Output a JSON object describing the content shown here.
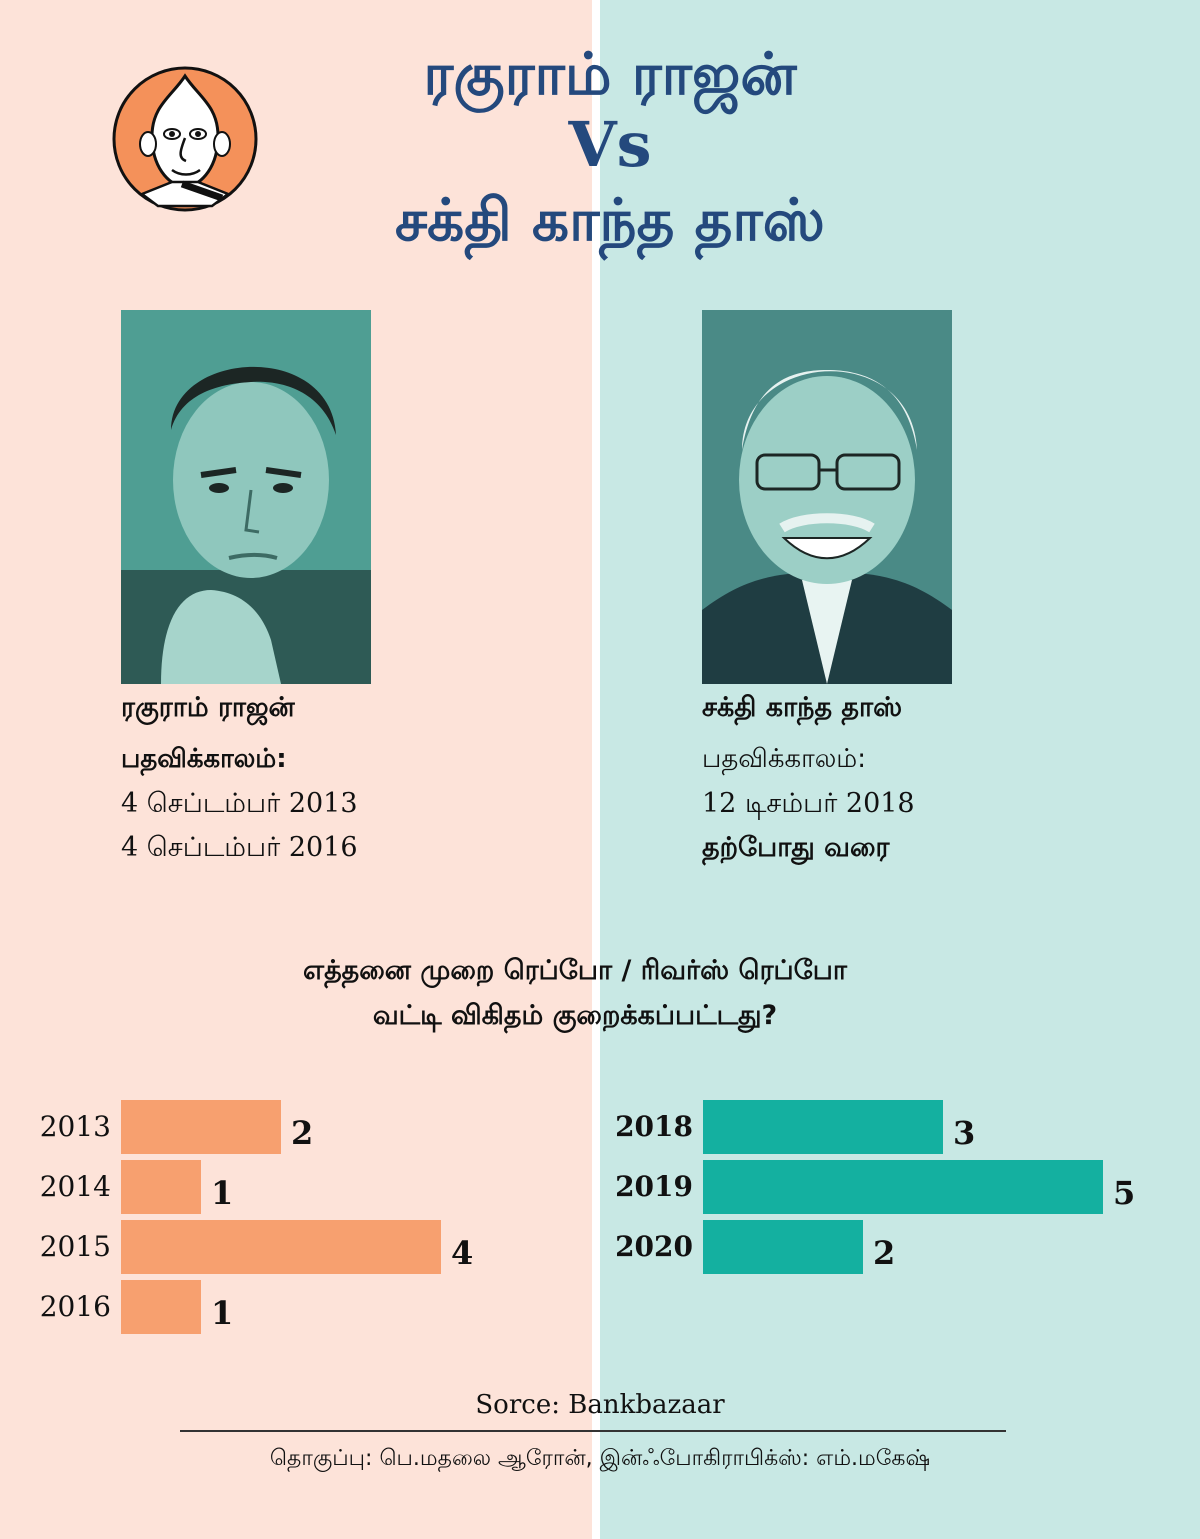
{
  "title": {
    "line1": "ரகுராம் ராஜன்",
    "vs": "Vs",
    "line2": "சக்தி காந்த தாஸ்"
  },
  "left": {
    "name": "ரகுராம் ராஜன்",
    "tenure_label": "பதவிக்காலம்:",
    "from": "4 செப்டம்பர் 2013",
    "to": "4 செப்டம்பர் 2016"
  },
  "right": {
    "name": "சக்தி காந்த தாஸ்",
    "tenure_label": "பதவிக்காலம்:",
    "from": "12 டிசம்பர் 2018",
    "to": "தற்போது வரை"
  },
  "question": {
    "line1": "எத்தனை முறை ரெப்போ / ரிவர்ஸ் ரெப்போ",
    "line2": "வட்டி விகிதம் குறைக்கப்பட்டது?"
  },
  "colors": {
    "left_bar": "#f7a06f",
    "right_bar": "#14b0a0",
    "title": "#24497d",
    "left_bg": "#fde3d9",
    "right_bg": "#c8e8e4"
  },
  "chart_data": [
    {
      "type": "bar",
      "orientation": "horizontal",
      "categories": [
        "2013",
        "2014",
        "2015",
        "2016"
      ],
      "values": [
        2,
        1,
        4,
        1
      ]
    },
    {
      "type": "bar",
      "orientation": "horizontal",
      "categories": [
        "2018",
        "2019",
        "2020"
      ],
      "values": [
        3,
        5,
        2
      ]
    }
  ],
  "source": "Sorce: Bankbazaar",
  "credits": "தொகுப்பு: பெ.மதலை ஆரோன், இன்ஃபோகிராபிக்ஸ்: எம்.மகேஷ்"
}
